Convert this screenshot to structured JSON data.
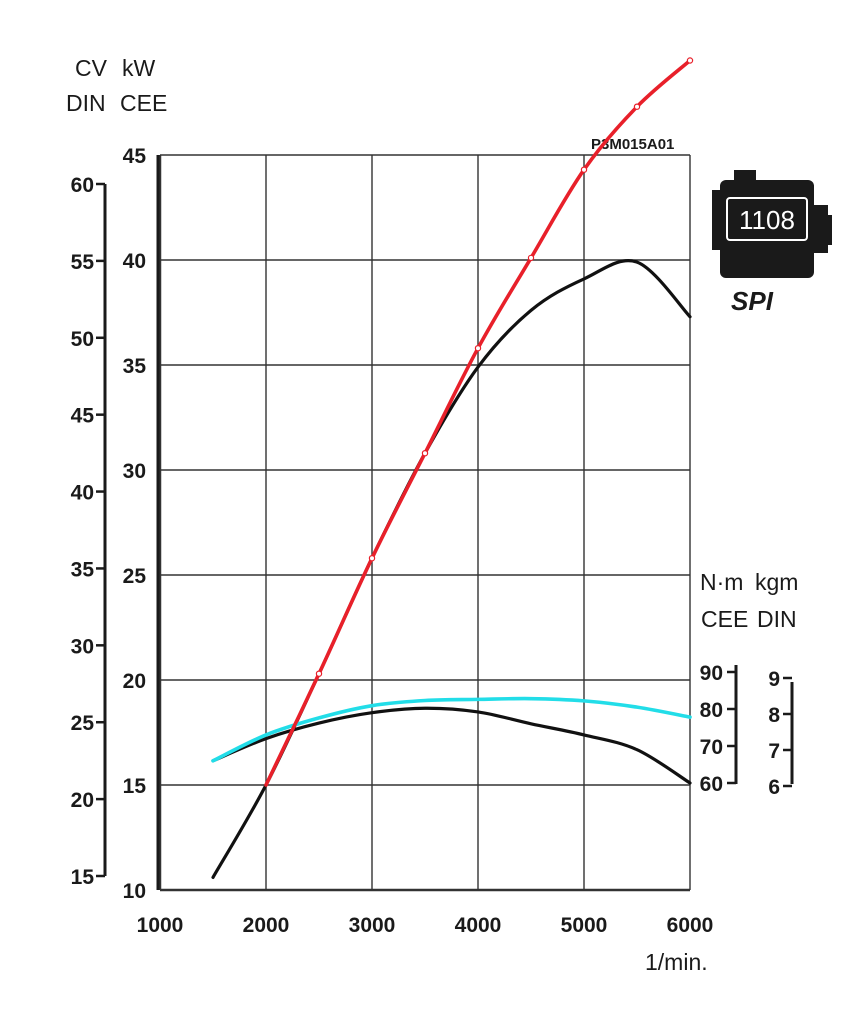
{
  "header": {
    "left_units_line1": [
      "CV",
      "kW"
    ],
    "left_units_line2": [
      "DIN",
      "CEE"
    ],
    "right_units_line1": [
      "N·m",
      "kgm"
    ],
    "right_units_line2": [
      "CEE",
      "DIN"
    ],
    "code": "P3M015A01",
    "x_unit": "1/min."
  },
  "engine_badge": {
    "number": "1108",
    "label": "SPI",
    "icon": "engine-block-icon"
  },
  "colors": {
    "grid": "#333333",
    "axis": "#1a1a1a",
    "power_curve": "#e8202a",
    "torque_curve": "#22dde8",
    "black_curve": "#111111"
  },
  "chart_data": {
    "type": "line",
    "x": [
      1500,
      2000,
      2500,
      3000,
      3500,
      4000,
      4500,
      5000,
      5500,
      6000
    ],
    "xlim": [
      1000,
      6000
    ],
    "x_ticks": [
      "1000",
      "2000",
      "3000",
      "4000",
      "5000",
      "6000"
    ],
    "axes": {
      "kw_cee": {
        "ticks": [
          "10",
          "15",
          "20",
          "25",
          "30",
          "35",
          "40",
          "45"
        ],
        "range": [
          10,
          45
        ]
      },
      "cv_din": {
        "ticks": [
          "15",
          "20",
          "25",
          "30",
          "35",
          "40",
          "45",
          "50",
          "55",
          "60"
        ],
        "range": [
          15,
          60
        ]
      },
      "nm_cee": {
        "ticks": [
          "60",
          "70",
          "80",
          "90"
        ],
        "range": [
          60,
          90
        ]
      },
      "kgm_din": {
        "ticks": [
          "6",
          "7",
          "8",
          "9"
        ],
        "range": [
          6,
          9
        ]
      }
    },
    "series": [
      {
        "axis": "kw_cee",
        "color": "#e8202a",
        "x": [
          2000,
          2500,
          3000,
          3500,
          4000,
          4500,
          5000,
          5500,
          6000
        ],
        "values": [
          15.0,
          20.3,
          25.8,
          30.8,
          35.8,
          40.1,
          44.3,
          47.3,
          49.5
        ]
      },
      {
        "axis": "kw_cee",
        "color": "#111111",
        "x": [
          1500,
          2000,
          2500,
          3000,
          3500,
          4000,
          4500,
          5000,
          5500,
          6000
        ],
        "values": [
          10.6,
          15.0,
          20.3,
          25.8,
          30.8,
          34.9,
          37.6,
          39.1,
          39.9,
          37.3
        ]
      },
      {
        "axis": "nm_cee",
        "color": "#22dde8",
        "x": [
          1500,
          2000,
          2500,
          3000,
          3500,
          4000,
          4500,
          5000,
          5500,
          6000
        ],
        "values": [
          66.0,
          73.0,
          77.6,
          80.9,
          82.3,
          82.6,
          82.8,
          82.2,
          80.5,
          77.8
        ]
      },
      {
        "axis": "nm_cee",
        "color": "#111111",
        "x": [
          1500,
          2000,
          2500,
          3000,
          3500,
          4000,
          4500,
          5000,
          5500,
          6000
        ],
        "values": [
          66.0,
          72.0,
          76.2,
          79.0,
          80.2,
          79.2,
          76.0,
          73.0,
          69.0,
          60.0
        ]
      }
    ]
  }
}
